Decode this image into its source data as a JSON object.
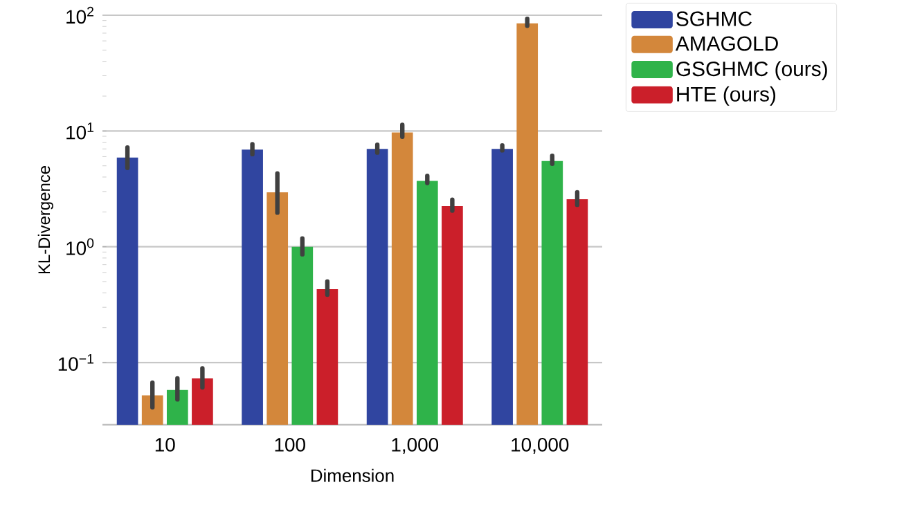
{
  "chart_data": {
    "type": "bar",
    "xlabel": "Dimension",
    "ylabel": "KL-Divergence",
    "categories": [
      "10",
      "100",
      "1,000",
      "10,000"
    ],
    "series": [
      {
        "name": "SGHMC",
        "color": "#3045a0",
        "values": [
          5.9,
          6.9,
          7.0,
          7.0
        ],
        "errors": [
          [
            4.8,
            7.2
          ],
          [
            6.3,
            7.7
          ],
          [
            6.5,
            7.6
          ],
          [
            6.8,
            7.5
          ]
        ]
      },
      {
        "name": "AMAGOLD",
        "color": "#d3873b",
        "values": [
          0.052,
          2.95,
          9.7,
          85
        ],
        "errors": [
          [
            0.041,
            0.067
          ],
          [
            1.97,
            4.3
          ],
          [
            8.9,
            11.3
          ],
          [
            81,
            93
          ]
        ]
      },
      {
        "name": "GSGHMC (ours)",
        "color": "#2fb34a",
        "values": [
          0.058,
          1.0,
          3.7,
          5.5
        ],
        "errors": [
          [
            0.048,
            0.073
          ],
          [
            0.86,
            1.18
          ],
          [
            3.55,
            4.1
          ],
          [
            5.2,
            6.1
          ]
        ]
      },
      {
        "name": "HTE (ours)",
        "color": "#cb1f2a",
        "values": [
          0.073,
          0.43,
          2.24,
          2.57
        ],
        "errors": [
          [
            0.061,
            0.089
          ],
          [
            0.385,
            0.5
          ],
          [
            2.05,
            2.55
          ],
          [
            2.3,
            2.95
          ]
        ]
      }
    ],
    "log": "y",
    "ylim": [
      0.029,
      100
    ],
    "yticks": [
      {
        "value": 0.1,
        "label": "10$^{−1}$"
      },
      {
        "value": 1,
        "label": "10$^{0}$"
      },
      {
        "value": 10,
        "label": "10$^{1}$"
      },
      {
        "value": 100,
        "label": "10$^{2}$"
      }
    ],
    "grid": "y",
    "legend": "top right"
  }
}
